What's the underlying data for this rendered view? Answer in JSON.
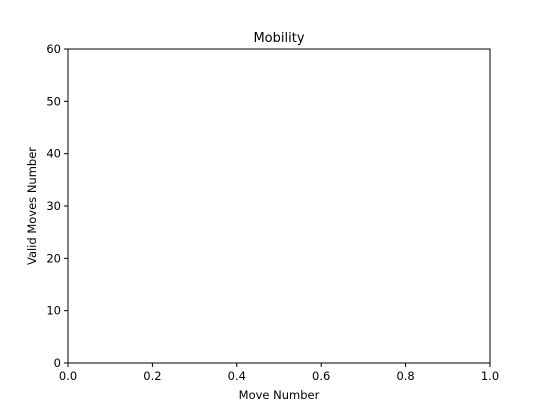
{
  "chart_data": {
    "type": "line",
    "title": "Mobility",
    "xlabel": "Move Number",
    "ylabel": "Valid Moves Number",
    "xlim": [
      0.0,
      1.0
    ],
    "ylim": [
      0,
      60
    ],
    "x_ticks": [
      "0.0",
      "0.2",
      "0.4",
      "0.6",
      "0.8",
      "1.0"
    ],
    "y_ticks": [
      "0",
      "10",
      "20",
      "30",
      "40",
      "50",
      "60"
    ],
    "grid": false,
    "series": []
  }
}
